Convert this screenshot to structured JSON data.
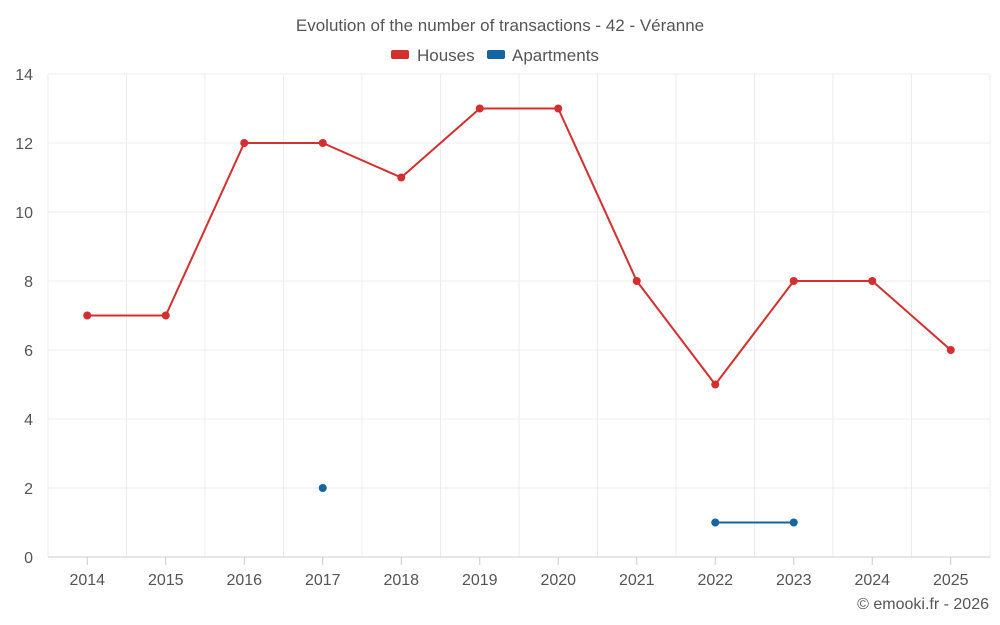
{
  "chart_data": {
    "type": "line",
    "title": "Evolution of the number of transactions - 42 - Véranne",
    "categories": [
      "2014",
      "2015",
      "2016",
      "2017",
      "2018",
      "2019",
      "2020",
      "2021",
      "2022",
      "2023",
      "2024",
      "2025"
    ],
    "ylim": [
      0,
      14
    ],
    "yticks": [
      0,
      2,
      4,
      6,
      8,
      10,
      12,
      14
    ],
    "grid": true,
    "legend_position": "top-center",
    "series": [
      {
        "name": "Houses",
        "color": "#d32f2f",
        "values": [
          7,
          7,
          12,
          12,
          11,
          13,
          13,
          8,
          5,
          8,
          8,
          6
        ]
      },
      {
        "name": "Apartments",
        "color": "#1565a0",
        "values": [
          null,
          null,
          null,
          2,
          null,
          null,
          null,
          null,
          1,
          1,
          null,
          null
        ]
      }
    ],
    "credit": "© emooki.fr - 2026"
  }
}
